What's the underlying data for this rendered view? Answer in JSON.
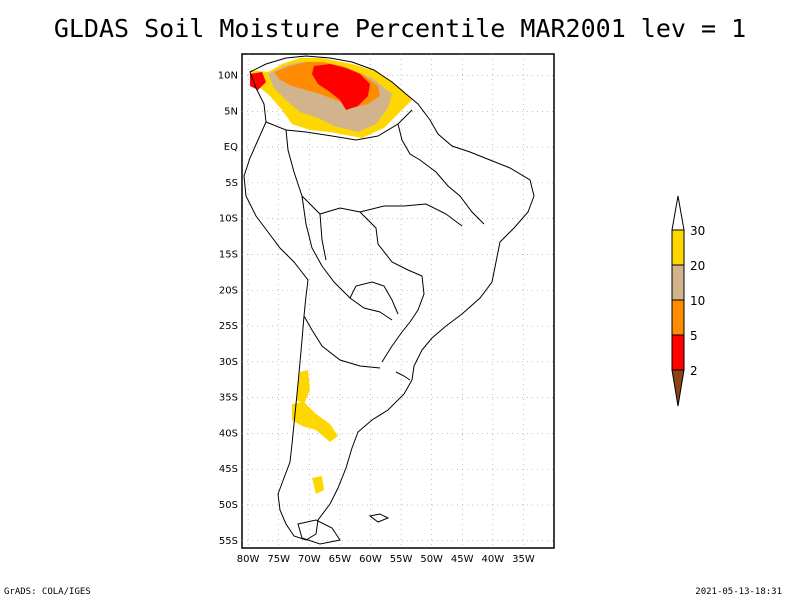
{
  "title": "GLDAS Soil Moisture Percentile MAR2001 lev = 1",
  "footer": {
    "left": "GrADS: COLA/IGES",
    "right": "2021-05-13-18:31"
  },
  "map": {
    "lon_range": [
      -81,
      -30
    ],
    "lat_range": [
      -56,
      13
    ],
    "lon_ticks": [
      "80W",
      "75W",
      "70W",
      "65W",
      "60W",
      "55W",
      "50W",
      "45W",
      "40W",
      "35W"
    ],
    "lat_ticks": [
      "10N",
      "5N",
      "EQ",
      "5S",
      "10S",
      "15S",
      "20S",
      "25S",
      "30S",
      "35S",
      "40S",
      "45S",
      "50S",
      "55S"
    ],
    "grid": true
  },
  "legend": {
    "labels": [
      "30",
      "20",
      "10",
      "5",
      "2"
    ],
    "colors": {
      "above_30": "#ffffff",
      "20_30": "#ffd700",
      "10_20": "#d2b48c",
      "5_10": "#ff8c00",
      "2_5": "#ff0000",
      "below_2": "#8b4513"
    }
  }
}
